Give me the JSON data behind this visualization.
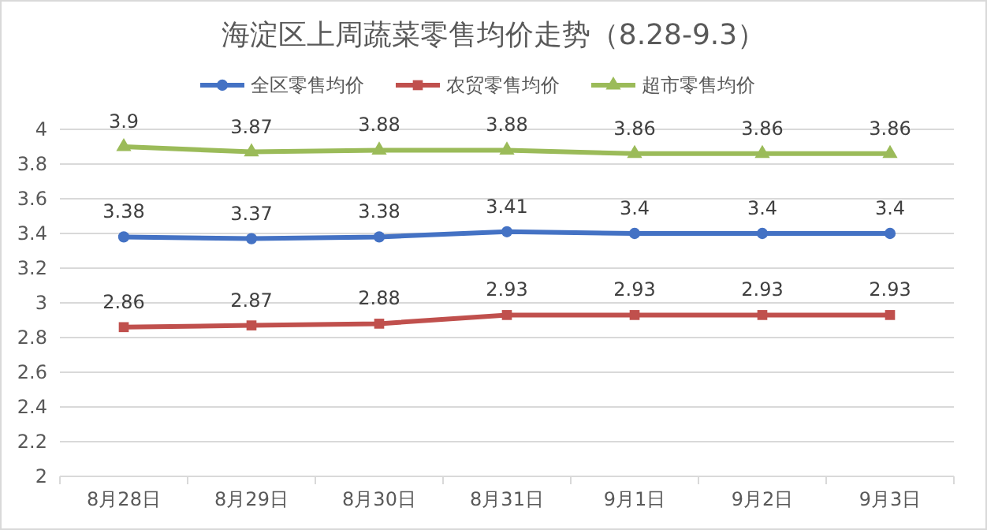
{
  "chart_data": {
    "type": "line",
    "title": "海淀区上周蔬菜零售均价走势（8.28-9.3）",
    "categories": [
      "8月28日",
      "8月29日",
      "8月30日",
      "8月31日",
      "9月1日",
      "9月2日",
      "9月3日"
    ],
    "series": [
      {
        "name": "全区零售均价",
        "color": "#4472c4",
        "marker": "circle",
        "values": [
          3.38,
          3.37,
          3.38,
          3.41,
          3.4,
          3.4,
          3.4
        ]
      },
      {
        "name": "农贸零售均价",
        "color": "#c0504d",
        "marker": "square",
        "values": [
          2.86,
          2.87,
          2.88,
          2.93,
          2.93,
          2.93,
          2.93
        ]
      },
      {
        "name": "超市零售均价",
        "color": "#9bbb59",
        "marker": "triangle",
        "values": [
          3.9,
          3.87,
          3.88,
          3.88,
          3.86,
          3.86,
          3.86
        ]
      }
    ],
    "ylim": [
      2,
      4
    ],
    "yticks": [
      2,
      2.2,
      2.4,
      2.6,
      2.8,
      3,
      3.2,
      3.4,
      3.6,
      3.8,
      4
    ],
    "grid": "y",
    "legend": "top",
    "data_labels": true,
    "line_style": "solid"
  }
}
